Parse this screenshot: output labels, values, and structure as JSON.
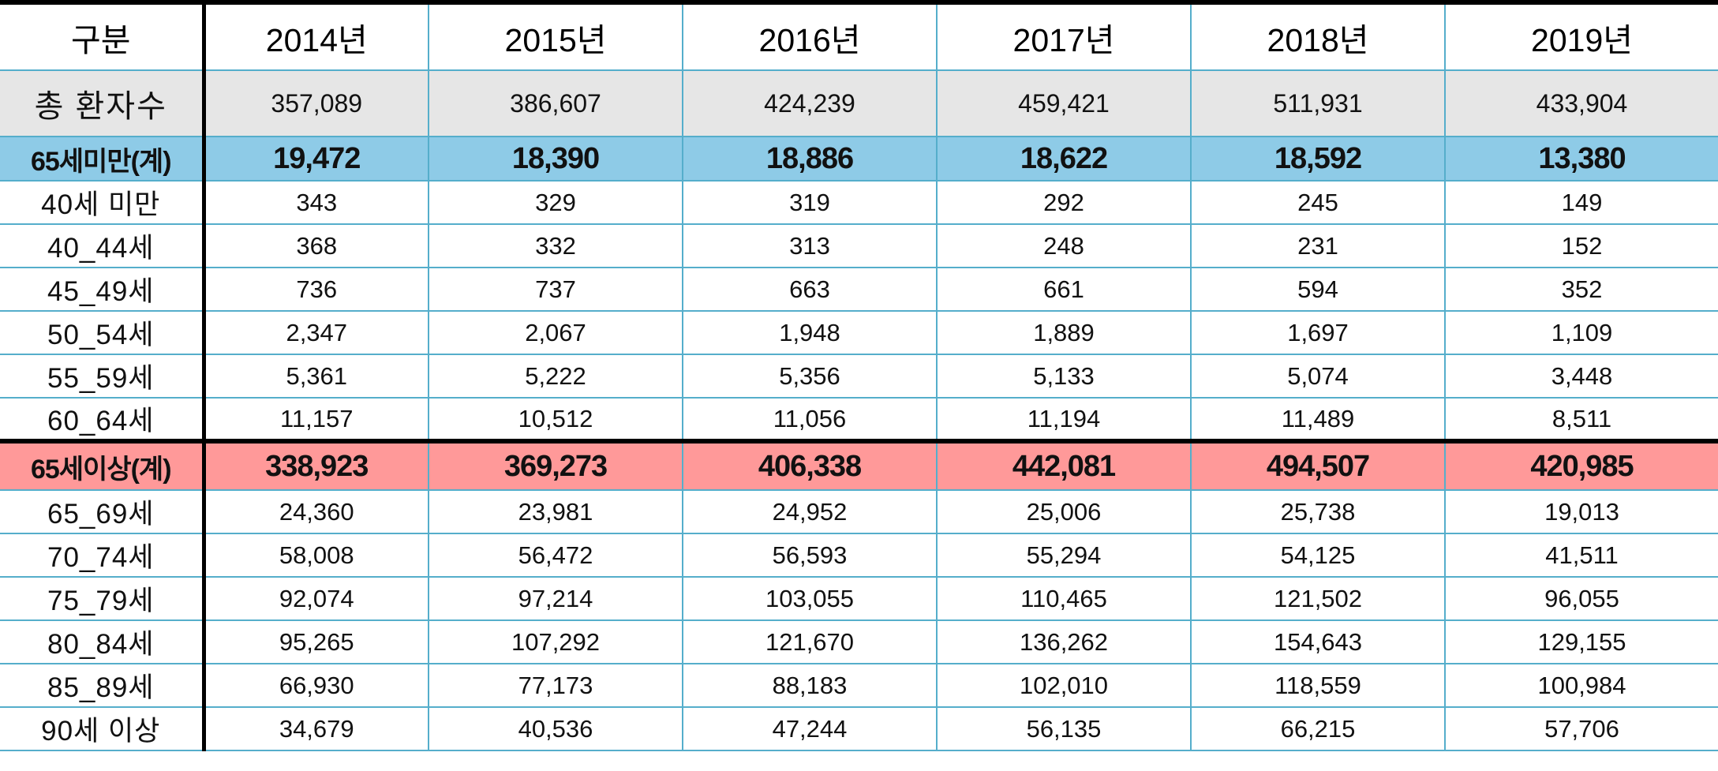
{
  "table": {
    "headers": [
      "구분",
      "2014년",
      "2015년",
      "2016년",
      "2017년",
      "2018년",
      "2019년"
    ],
    "total": {
      "label": "총 환자수",
      "values": [
        "357,089",
        "386,607",
        "424,239",
        "459,421",
        "511,931",
        "433,904"
      ]
    },
    "under65": {
      "label": "65세미만(계)",
      "values": [
        "19,472",
        "18,390",
        "18,886",
        "18,622",
        "18,592",
        "13,380"
      ]
    },
    "under65_rows": [
      {
        "label": "40세 미만",
        "values": [
          "343",
          "329",
          "319",
          "292",
          "245",
          "149"
        ]
      },
      {
        "label": "40_44세",
        "values": [
          "368",
          "332",
          "313",
          "248",
          "231",
          "152"
        ]
      },
      {
        "label": "45_49세",
        "values": [
          "736",
          "737",
          "663",
          "661",
          "594",
          "352"
        ]
      },
      {
        "label": "50_54세",
        "values": [
          "2,347",
          "2,067",
          "1,948",
          "1,889",
          "1,697",
          "1,109"
        ]
      },
      {
        "label": "55_59세",
        "values": [
          "5,361",
          "5,222",
          "5,356",
          "5,133",
          "5,074",
          "3,448"
        ]
      },
      {
        "label": "60_64세",
        "values": [
          "11,157",
          "10,512",
          "11,056",
          "11,194",
          "11,489",
          "8,511"
        ]
      }
    ],
    "over65": {
      "label": "65세이상(계)",
      "values": [
        "338,923",
        "369,273",
        "406,338",
        "442,081",
        "494,507",
        "420,985"
      ]
    },
    "over65_rows": [
      {
        "label": "65_69세",
        "values": [
          "24,360",
          "23,981",
          "24,952",
          "25,006",
          "25,738",
          "19,013"
        ]
      },
      {
        "label": "70_74세",
        "values": [
          "58,008",
          "56,472",
          "56,593",
          "55,294",
          "54,125",
          "41,511"
        ]
      },
      {
        "label": "75_79세",
        "values": [
          "92,074",
          "97,214",
          "103,055",
          "110,465",
          "121,502",
          "96,055"
        ]
      },
      {
        "label": "80_84세",
        "values": [
          "95,265",
          "107,292",
          "121,670",
          "136,262",
          "154,643",
          "129,155"
        ]
      },
      {
        "label": "85_89세",
        "values": [
          "66,930",
          "77,173",
          "88,183",
          "102,010",
          "118,559",
          "100,984"
        ]
      },
      {
        "label": "90세 이상",
        "values": [
          "34,679",
          "40,536",
          "47,244",
          "56,135",
          "66,215",
          "57,706"
        ]
      }
    ]
  },
  "colors": {
    "header_bg": "#ffffff",
    "total_bg": "#e6e6e6",
    "under65_bg": "#8ecbe7",
    "over65_bg": "#ff9999",
    "grid_line": "#55aecb",
    "thick_line": "#000000"
  }
}
